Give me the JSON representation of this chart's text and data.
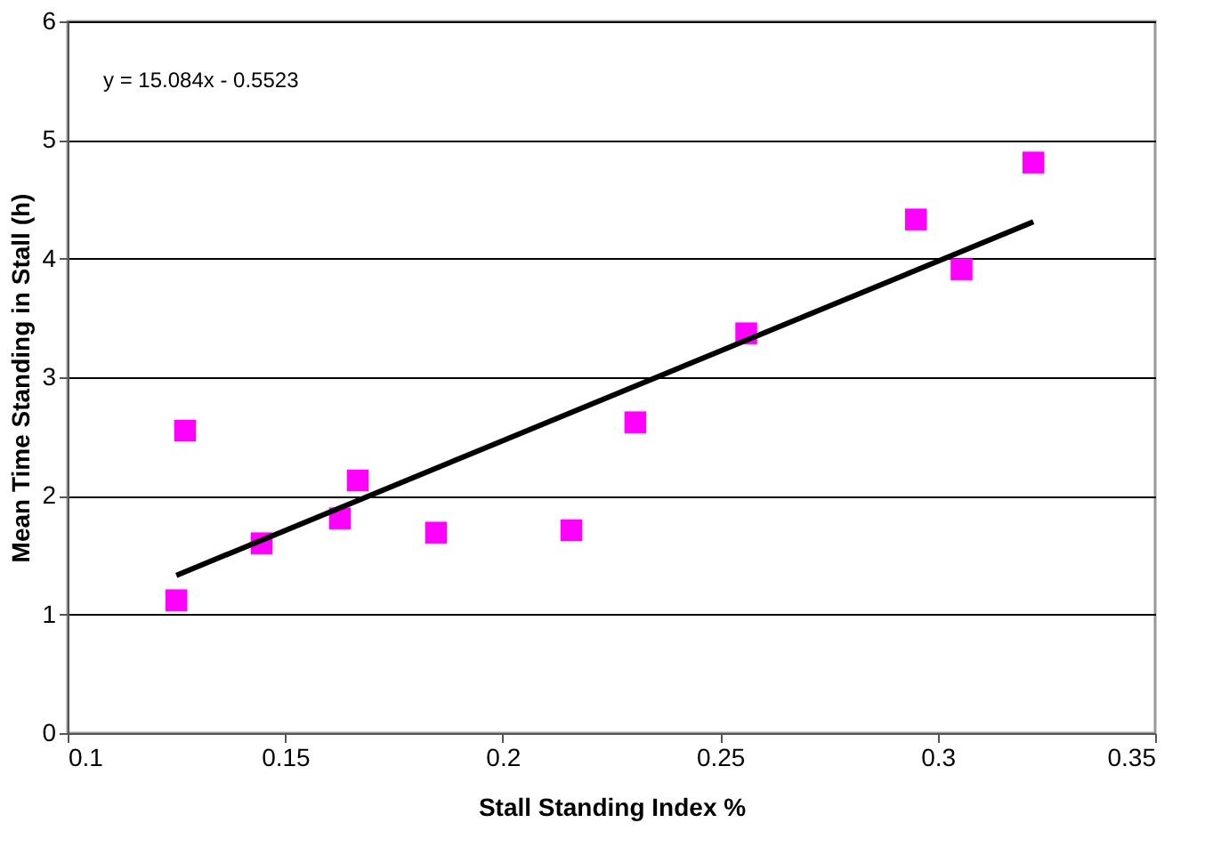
{
  "chart_data": {
    "type": "scatter",
    "xlabel": "Stall Standing Index %",
    "ylabel": "Mean Time Standing in Stall (h)",
    "annotations": [
      "y = 15.084x - 0.5523"
    ],
    "series": [
      {
        "color": "#ff00ff",
        "marker": "square",
        "x": [
          0.125,
          0.127,
          0.1446,
          0.1626,
          0.1667,
          0.1847,
          0.2158,
          0.2305,
          0.256,
          0.295,
          0.3055,
          0.322
        ],
        "values": [
          1.12,
          2.55,
          1.6,
          1.81,
          2.13,
          1.69,
          1.71,
          2.62,
          3.37,
          4.33,
          3.91,
          4.81
        ]
      },
      {
        "type": "line",
        "color": "#000000",
        "marker": "none",
        "line_style": "solid",
        "x": [
          0.125,
          0.322
        ],
        "values": [
          1.33,
          4.31
        ]
      }
    ],
    "xlim": [
      0.1,
      0.35
    ],
    "xticks": [
      0.1,
      0.15,
      0.2,
      0.25,
      0.3,
      0.35
    ],
    "ylim": [
      0,
      6
    ],
    "yticks": [
      0,
      1,
      2,
      3,
      4,
      5,
      6
    ],
    "grid": "y"
  }
}
